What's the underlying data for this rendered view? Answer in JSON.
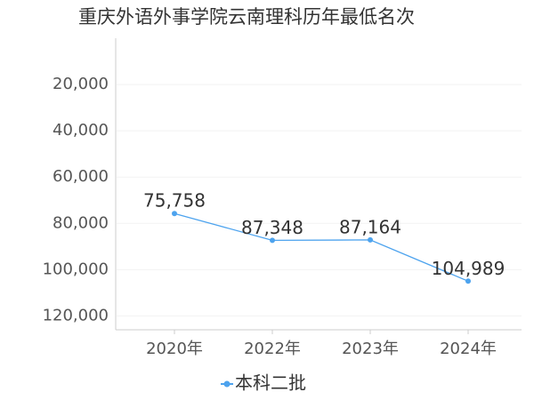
{
  "chart_data": {
    "type": "line",
    "title": "重庆外语外事学院云南理科历年最低名次",
    "categories": [
      "2020年",
      "2022年",
      "2023年",
      "2024年"
    ],
    "series": [
      {
        "name": "本科二批",
        "color": "#4da3ee",
        "values": [
          75758,
          87348,
          87164,
          104989
        ],
        "value_labels": [
          "75,758",
          "87,348",
          "87,164",
          "104,989"
        ]
      }
    ],
    "ylim": [
      0,
      126000
    ],
    "y_reversed": true,
    "yticks": [
      {
        "value": 20000,
        "label": "20,000"
      },
      {
        "value": 40000,
        "label": "40,000"
      },
      {
        "value": 60000,
        "label": "60,000"
      },
      {
        "value": 80000,
        "label": "80,000"
      },
      {
        "value": 100000,
        "label": "100,000"
      },
      {
        "value": 120000,
        "label": "120,000"
      }
    ],
    "grid": true,
    "legend": "bottom"
  }
}
